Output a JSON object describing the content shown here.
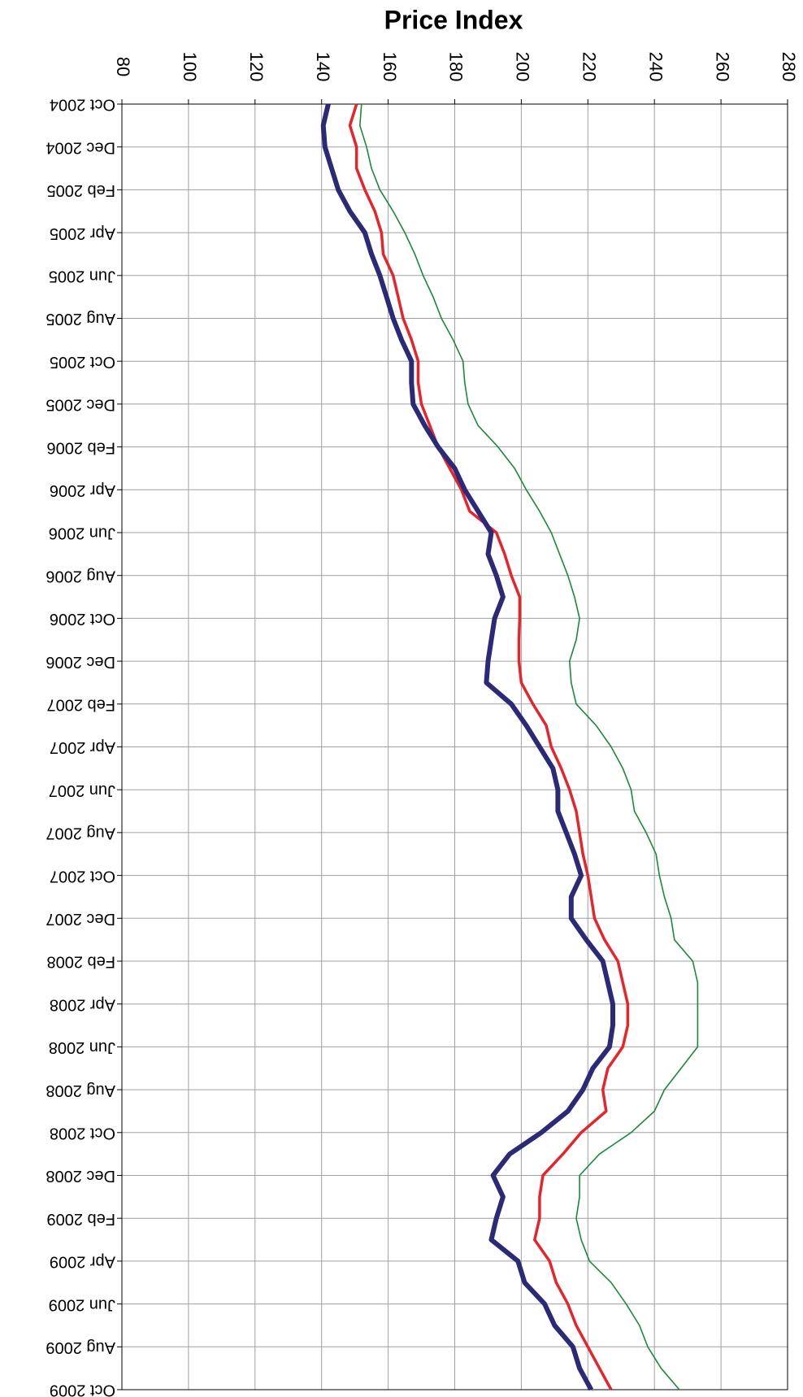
{
  "chart_data": {
    "type": "line",
    "title": "Price Index",
    "categories": [
      "Oct 2004",
      null,
      "Dec 2004",
      null,
      "Feb 2005",
      null,
      "Apr 2005",
      null,
      "Jun 2005",
      null,
      "Aug 2005",
      null,
      "Oct 2005",
      null,
      "Dec 2005",
      null,
      "Feb 2006",
      null,
      "Apr 2006",
      null,
      "Jun 2006",
      null,
      "Aug 2006",
      null,
      "Oct 2006",
      null,
      "Dec 2006",
      null,
      "Feb 2007",
      null,
      "Apr 2007",
      null,
      "Jun 2007",
      null,
      "Aug 2007",
      null,
      "Oct 2007",
      null,
      "Dec 2007",
      null,
      "Feb 2008",
      null,
      "Apr 2008",
      null,
      "Jun 2008",
      null,
      "Aug 2008",
      null,
      "Oct 2008",
      null,
      "Dec 2008",
      null,
      "Feb 2009",
      null,
      "Apr 2009",
      null,
      "Jun 2009",
      null,
      "Aug 2009",
      null,
      "Oct 2009"
    ],
    "series": [
      {
        "color": "#1a8a3a",
        "width": 1.6,
        "values": [
          152,
          151.5,
          153.5,
          155,
          157.5,
          161.5,
          165,
          168,
          170.5,
          173.5,
          176,
          179.5,
          182.5,
          183,
          184,
          187,
          193,
          198,
          201.5,
          205.5,
          209,
          211.5,
          214,
          216,
          217.5,
          216.5,
          214.5,
          215,
          216.5,
          222.5,
          227,
          230.5,
          233,
          234,
          237.5,
          240.5,
          241.5,
          243,
          245,
          246,
          251.5,
          253,
          253,
          253,
          253,
          248,
          243,
          240,
          233,
          223.5,
          217.5,
          217.5,
          216.5,
          218,
          220.5,
          227,
          231.5,
          235.5,
          238,
          242,
          247.5
        ]
      },
      {
        "color": "#e8242b",
        "width": 3.5,
        "values": [
          150.5,
          148.5,
          150.5,
          150.5,
          153,
          156,
          158,
          158.5,
          161.5,
          163,
          164.5,
          167,
          169,
          169,
          170,
          172.5,
          175,
          178.5,
          182,
          184.5,
          192.5,
          195,
          197,
          199.5,
          199.5,
          199.3,
          199.3,
          200,
          203.5,
          207.5,
          209,
          212,
          214.5,
          216.5,
          217.5,
          218.5,
          220,
          221,
          222,
          225,
          229,
          230.5,
          232,
          232,
          230.5,
          226,
          224.5,
          225.5,
          218,
          212.5,
          206.5,
          205.5,
          205.5,
          204,
          208.5,
          210.5,
          214,
          216.5,
          220,
          223.5,
          227
        ]
      },
      {
        "color": "#2b2a78",
        "width": 6,
        "values": [
          142,
          140.5,
          141,
          143,
          145,
          148.5,
          153,
          155,
          157.5,
          159.5,
          161.5,
          164,
          167,
          167,
          167.5,
          171,
          175,
          180,
          183,
          187,
          191,
          190,
          192.5,
          194.5,
          192,
          191,
          190,
          189.5,
          197,
          201.5,
          205.5,
          209.5,
          211,
          211,
          213.5,
          216,
          218,
          215,
          215,
          219.5,
          224.5,
          226,
          227.5,
          227.5,
          226.5,
          221.5,
          218.5,
          214,
          206,
          196.5,
          191.5,
          194.5,
          192.5,
          191,
          199,
          201,
          207,
          210,
          215.5,
          217.5,
          221
        ]
      }
    ],
    "ylim": [
      80,
      280
    ],
    "yticks": [
      80,
      100,
      120,
      140,
      160,
      180,
      200,
      220,
      240,
      260,
      280
    ],
    "grid": true
  }
}
